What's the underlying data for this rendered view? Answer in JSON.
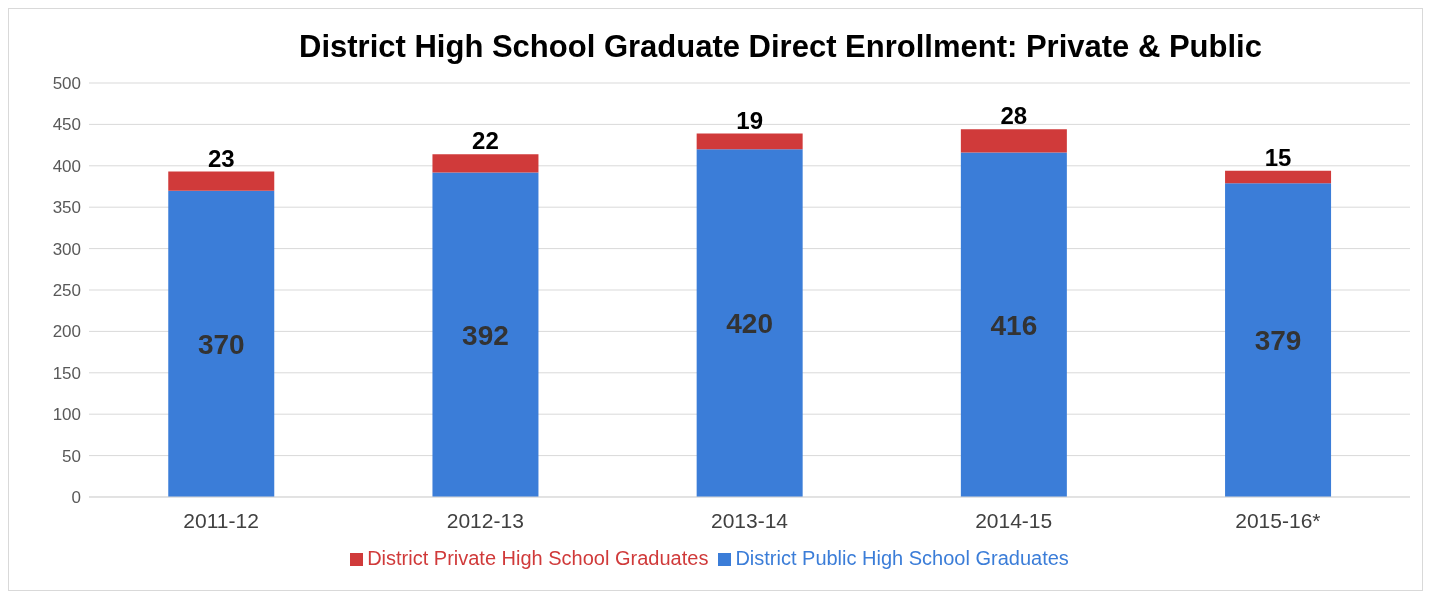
{
  "chart_data": {
    "type": "bar",
    "title": "District High School Graduate Direct Enrollment: Private & Public",
    "categories": [
      "2011-12",
      "2012-13",
      "2013-14",
      "2014-15",
      "2015-16*"
    ],
    "series": [
      {
        "name": "District Public High School Graduates",
        "color": "#3b7dd8",
        "values": [
          370,
          392,
          420,
          416,
          379
        ]
      },
      {
        "name": "District Private High School Graduates",
        "color": "#d03a3a",
        "values": [
          23,
          22,
          19,
          28,
          15
        ]
      }
    ],
    "stacked": true,
    "data_labels": true,
    "ylim": [
      0,
      500
    ],
    "yticks": [
      0,
      50,
      100,
      150,
      200,
      250,
      300,
      350,
      400,
      450,
      500
    ],
    "grid": "y",
    "legend": "bottom"
  }
}
